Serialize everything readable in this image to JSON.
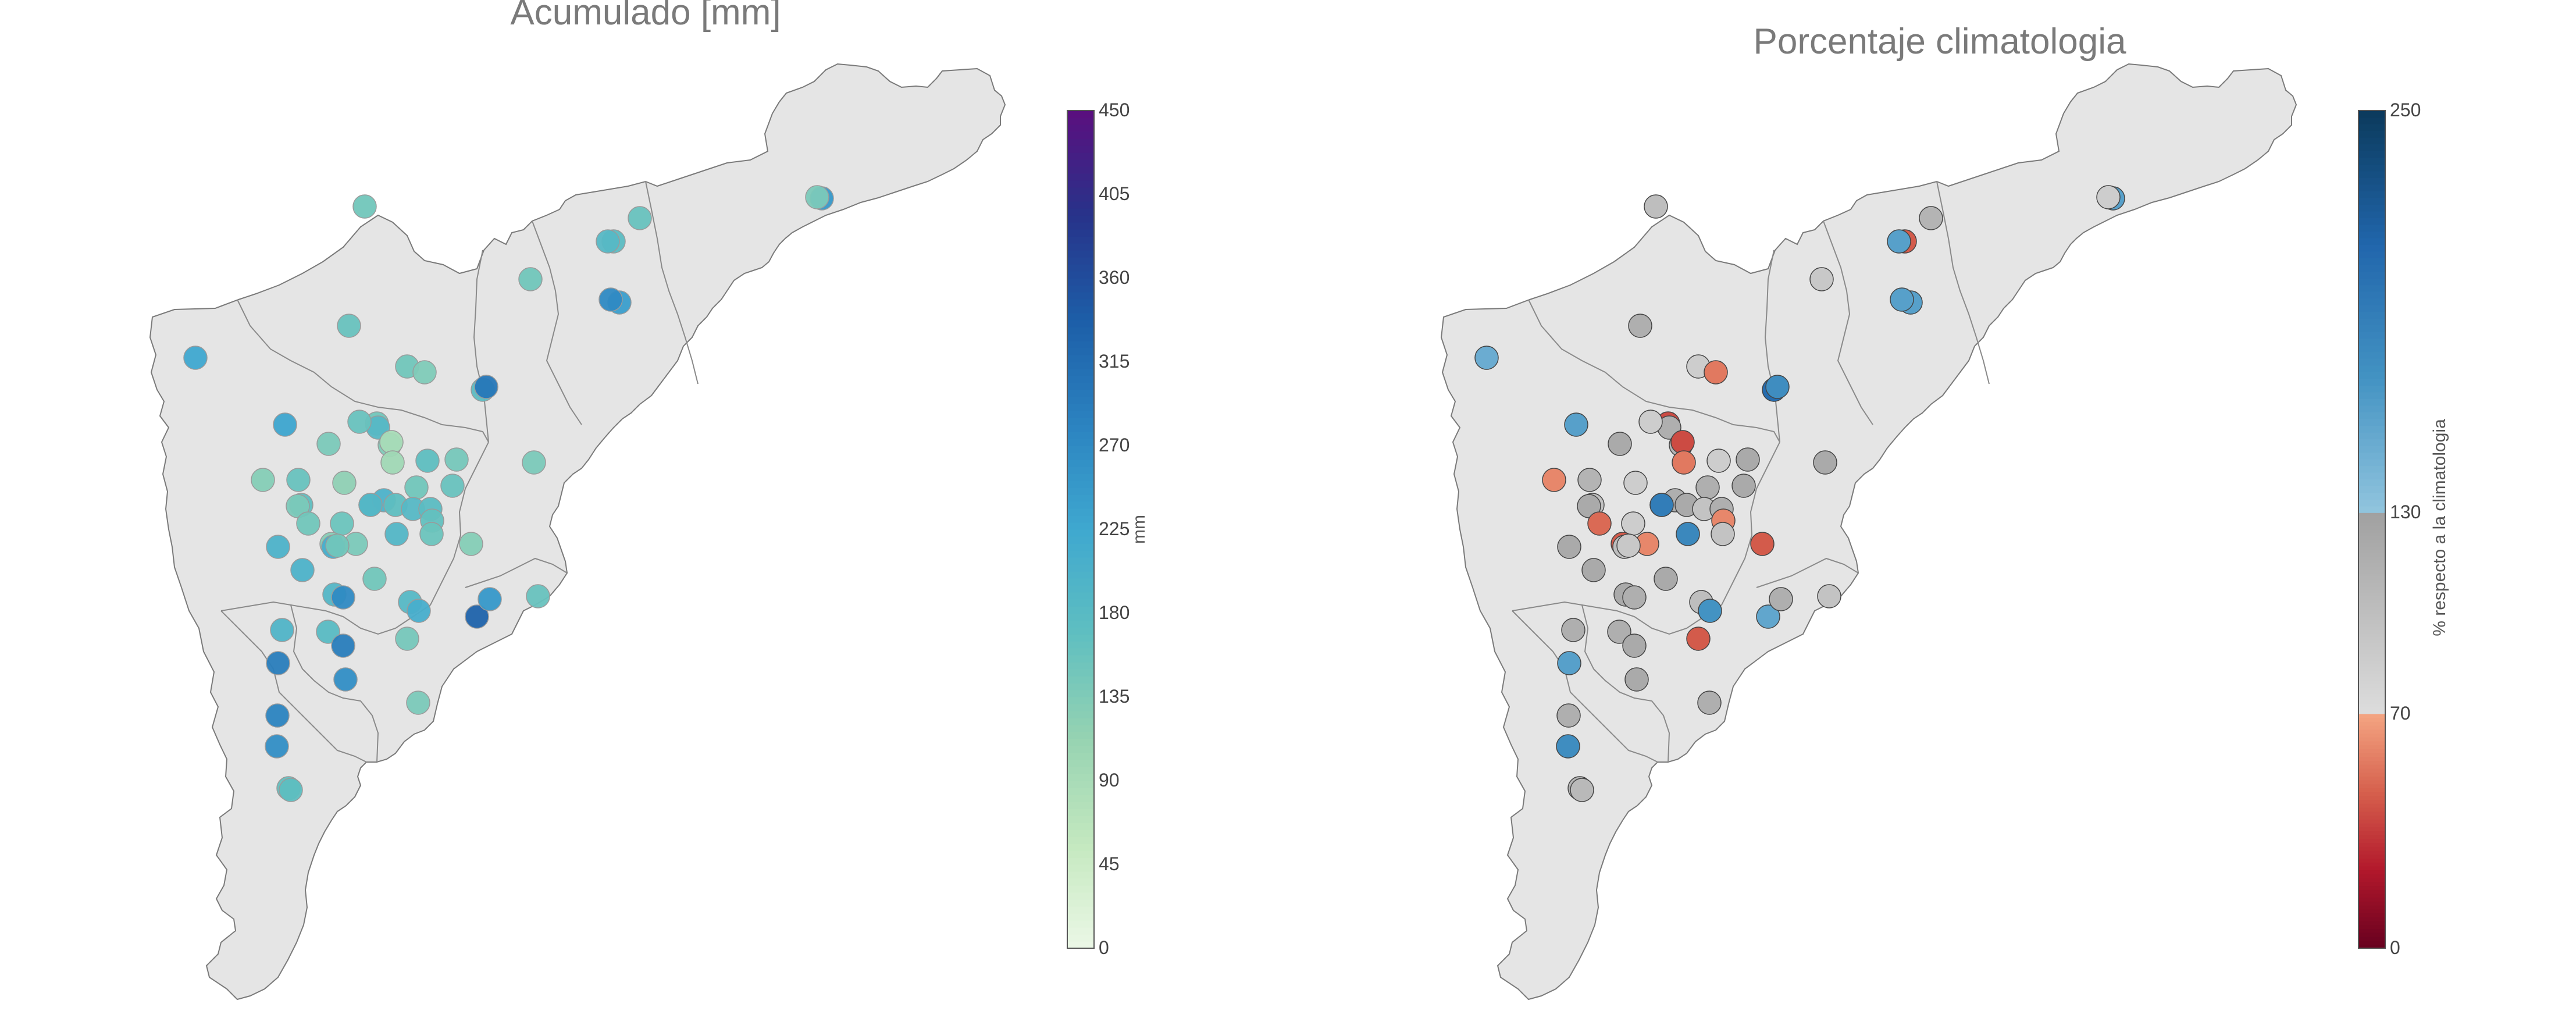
{
  "panels": {
    "left": {
      "title": "Acumulado [mm]"
    },
    "right": {
      "title": "Porcentaje climatologia"
    }
  },
  "colorbars": {
    "left": {
      "label": "mm",
      "ticks": [
        "450",
        "405",
        "360",
        "315",
        "270",
        "225",
        "180",
        "135",
        "90",
        "45",
        "0"
      ],
      "range": [
        0,
        450
      ],
      "colors": [
        "#ebf8e6",
        "#c4e8bf",
        "#96d3b2",
        "#5fbfc0",
        "#3fa8d0",
        "#2b83c0",
        "#1d5ea8",
        "#27338a",
        "#5b0f7f"
      ]
    },
    "right": {
      "label": "% respecto a la climatologia",
      "ticks": [
        "250",
        "130",
        "70",
        "0"
      ],
      "segments": [
        {
          "from": 0,
          "to": 70,
          "colors": [
            "#67001f",
            "#b2182b",
            "#d6604d",
            "#f4a582"
          ]
        },
        {
          "from": 70,
          "to": 130,
          "colors": [
            "#dcdcdc",
            "#a0a0a0"
          ]
        },
        {
          "from": 130,
          "to": 250,
          "colors": [
            "#92c5de",
            "#4393c3",
            "#2166ac",
            "#0b3a5c"
          ]
        }
      ]
    }
  },
  "chart_data": [
    {
      "type": "scatter",
      "title": "Acumulado [mm]",
      "value_label": "mm",
      "range": [
        0,
        450
      ],
      "stations": [
        {
          "id": 1,
          "value": 150
        },
        {
          "id": 2,
          "value": 160
        },
        {
          "id": 3,
          "value": 250
        },
        {
          "id": 4,
          "value": 140
        },
        {
          "id": 5,
          "value": 175
        },
        {
          "id": 6,
          "value": 185
        },
        {
          "id": 7,
          "value": 150
        },
        {
          "id": 8,
          "value": 240
        },
        {
          "id": 9,
          "value": 270
        },
        {
          "id": 10,
          "value": 160
        },
        {
          "id": 11,
          "value": 150
        },
        {
          "id": 12,
          "value": 135
        },
        {
          "id": 13,
          "value": 150
        },
        {
          "id": 14,
          "value": 185
        },
        {
          "id": 15,
          "value": 175
        },
        {
          "id": 16,
          "value": 225
        },
        {
          "id": 17,
          "value": 300
        },
        {
          "id": 18,
          "value": 230
        },
        {
          "id": 19,
          "value": 140
        },
        {
          "id": 20,
          "value": 160
        },
        {
          "id": 21,
          "value": 135
        },
        {
          "id": 22,
          "value": 90
        },
        {
          "id": 23,
          "value": 100
        },
        {
          "id": 24,
          "value": 170
        },
        {
          "id": 25,
          "value": 145
        },
        {
          "id": 26,
          "value": 130
        },
        {
          "id": 27,
          "value": 160
        },
        {
          "id": 28,
          "value": 170
        },
        {
          "id": 29,
          "value": 140
        },
        {
          "id": 30,
          "value": 120
        },
        {
          "id": 31,
          "value": 150
        },
        {
          "id": 32,
          "value": 160
        },
        {
          "id": 33,
          "value": 180
        },
        {
          "id": 34,
          "value": 200
        },
        {
          "id": 35,
          "value": 170
        },
        {
          "id": 36,
          "value": 190
        },
        {
          "id": 37,
          "value": 185
        },
        {
          "id": 38,
          "value": 175
        },
        {
          "id": 39,
          "value": 190
        },
        {
          "id": 40,
          "value": 165
        },
        {
          "id": 41,
          "value": 155
        },
        {
          "id": 42,
          "value": 130
        },
        {
          "id": 43,
          "value": 210
        },
        {
          "id": 44,
          "value": 140
        },
        {
          "id": 45,
          "value": 155
        },
        {
          "id": 46,
          "value": 200
        },
        {
          "id": 47,
          "value": 150
        },
        {
          "id": 48,
          "value": 200
        },
        {
          "id": 49,
          "value": 190
        },
        {
          "id": 50,
          "value": 150
        },
        {
          "id": 51,
          "value": 130
        },
        {
          "id": 52,
          "value": 150
        },
        {
          "id": 53,
          "value": 160
        },
        {
          "id": 54,
          "value": 330
        },
        {
          "id": 55,
          "value": 185
        },
        {
          "id": 56,
          "value": 210
        },
        {
          "id": 57,
          "value": 270
        },
        {
          "id": 58,
          "value": 195
        },
        {
          "id": 59,
          "value": 145
        },
        {
          "id": 60,
          "value": 180
        },
        {
          "id": 61,
          "value": 290
        },
        {
          "id": 62,
          "value": 290
        },
        {
          "id": 63,
          "value": 265
        },
        {
          "id": 64,
          "value": 280
        },
        {
          "id": 65,
          "value": 140
        },
        {
          "id": 66,
          "value": 265
        },
        {
          "id": 67,
          "value": 165
        },
        {
          "id": 68,
          "value": 170
        },
        {
          "id": 69,
          "value": 250
        },
        {
          "id": 70,
          "value": 140
        }
      ]
    },
    {
      "type": "scatter",
      "title": "Porcentaje climatologia",
      "value_label": "% respecto a la climatologia",
      "range": [
        0,
        250
      ],
      "stations": [
        {
          "id": 1,
          "value": 100
        },
        {
          "id": 2,
          "value": 110
        },
        {
          "id": 3,
          "value": 160
        },
        {
          "id": 4,
          "value": 85
        },
        {
          "id": 5,
          "value": 45
        },
        {
          "id": 6,
          "value": 160
        },
        {
          "id": 7,
          "value": 90
        },
        {
          "id": 8,
          "value": 160
        },
        {
          "id": 9,
          "value": 160
        },
        {
          "id": 10,
          "value": 115
        },
        {
          "id": 11,
          "value": 85
        },
        {
          "id": 12,
          "value": 55
        },
        {
          "id": 13,
          "value": 40
        },
        {
          "id": 14,
          "value": 115
        },
        {
          "id": 15,
          "value": 205
        },
        {
          "id": 16,
          "value": 150
        },
        {
          "id": 17,
          "value": 175
        },
        {
          "id": 18,
          "value": 160
        },
        {
          "id": 19,
          "value": 120
        },
        {
          "id": 20,
          "value": 85
        },
        {
          "id": 21,
          "value": 110
        },
        {
          "id": 22,
          "value": 40
        },
        {
          "id": 23,
          "value": 55
        },
        {
          "id": 24,
          "value": 85
        },
        {
          "id": 25,
          "value": 120
        },
        {
          "id": 26,
          "value": 60
        },
        {
          "id": 27,
          "value": 110
        },
        {
          "id": 28,
          "value": 95
        },
        {
          "id": 29,
          "value": 120
        },
        {
          "id": 30,
          "value": 85
        },
        {
          "id": 31,
          "value": 115
        },
        {
          "id": 32,
          "value": 120
        },
        {
          "id": 33,
          "value": 90
        },
        {
          "id": 34,
          "value": 115
        },
        {
          "id": 35,
          "value": 120
        },
        {
          "id": 36,
          "value": 190
        },
        {
          "id": 37,
          "value": 95
        },
        {
          "id": 38,
          "value": 115
        },
        {
          "id": 39,
          "value": 180
        },
        {
          "id": 40,
          "value": 60
        },
        {
          "id": 41,
          "value": 85
        },
        {
          "id": 42,
          "value": 45
        },
        {
          "id": 43,
          "value": 100
        },
        {
          "id": 44,
          "value": 60
        },
        {
          "id": 45,
          "value": 95
        },
        {
          "id": 46,
          "value": 120
        },
        {
          "id": 47,
          "value": 90
        },
        {
          "id": 48,
          "value": 120
        },
        {
          "id": 49,
          "value": 120
        },
        {
          "id": 50,
          "value": 120
        },
        {
          "id": 51,
          "value": 45
        },
        {
          "id": 52,
          "value": 50
        },
        {
          "id": 53,
          "value": 95
        },
        {
          "id": 54,
          "value": 155
        },
        {
          "id": 55,
          "value": 100
        },
        {
          "id": 56,
          "value": 170
        },
        {
          "id": 57,
          "value": 115
        },
        {
          "id": 58,
          "value": 115
        },
        {
          "id": 59,
          "value": 45
        },
        {
          "id": 60,
          "value": 115
        },
        {
          "id": 61,
          "value": 120
        },
        {
          "id": 62,
          "value": 160
        },
        {
          "id": 63,
          "value": 120
        },
        {
          "id": 64,
          "value": 115
        },
        {
          "id": 65,
          "value": 115
        },
        {
          "id": 66,
          "value": 175
        },
        {
          "id": 67,
          "value": 110
        },
        {
          "id": 68,
          "value": 105
        },
        {
          "id": 69,
          "value": 115
        },
        {
          "id": 70,
          "value": 120
        }
      ]
    }
  ]
}
